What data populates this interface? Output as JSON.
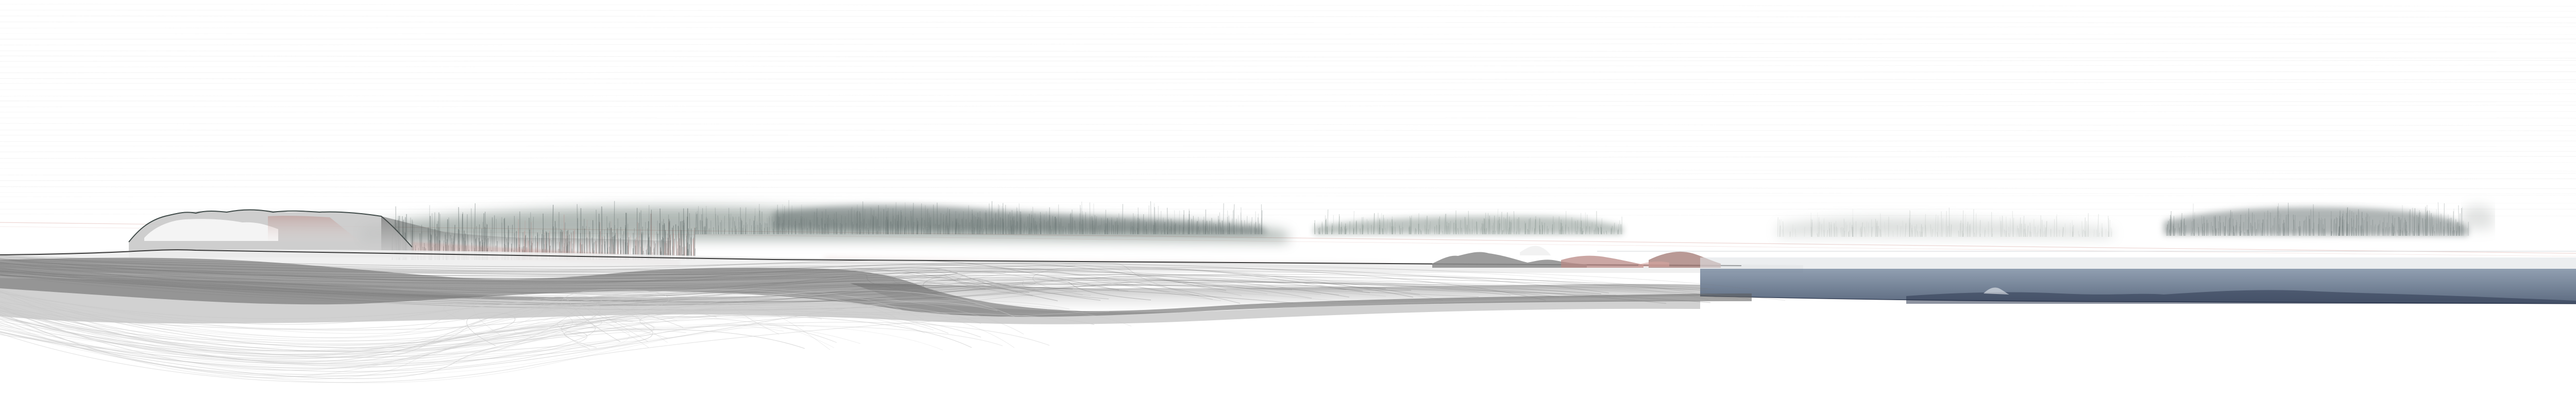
{
  "artwork": {
    "background": "#ffffff",
    "palette": {
      "rule_line": "#e6e6e6",
      "mist_dark": "#5f6b6a",
      "mist_green": "#6f7f78",
      "rose": "#b98a85",
      "rose_line": "#d9a5a0",
      "slate": "#7d8ea3",
      "slate_dark": "#4a5a72",
      "fog_grey": "#8a8a8a",
      "deep_grey": "#3f3f3f",
      "trace_grey": "#c8c8c8"
    }
  }
}
